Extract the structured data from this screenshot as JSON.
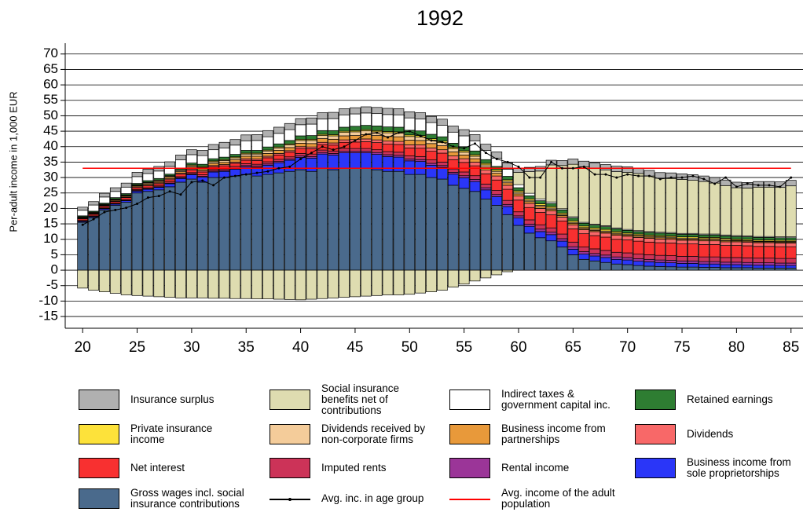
{
  "chart_data": {
    "type": "bar",
    "stacked": true,
    "title": "1992",
    "y_label": "Per-adult income in 1,000 EUR",
    "x": [
      20,
      21,
      22,
      23,
      24,
      25,
      26,
      27,
      28,
      29,
      30,
      31,
      32,
      33,
      34,
      35,
      36,
      37,
      38,
      39,
      40,
      41,
      42,
      43,
      44,
      45,
      46,
      47,
      48,
      49,
      50,
      51,
      52,
      53,
      54,
      55,
      56,
      57,
      58,
      59,
      60,
      61,
      62,
      63,
      64,
      65,
      66,
      67,
      68,
      69,
      70,
      71,
      72,
      73,
      74,
      75,
      76,
      77,
      78,
      79,
      80,
      81,
      82,
      83,
      84,
      85
    ],
    "xlim": [
      18.4,
      86.1
    ],
    "ylim": [
      -18.8,
      73.5
    ],
    "xticks": [
      20,
      25,
      30,
      35,
      40,
      45,
      50,
      55,
      60,
      65,
      70,
      75,
      80,
      85
    ],
    "yticks": [
      -15,
      -10,
      -5,
      0,
      5,
      10,
      15,
      20,
      25,
      30,
      35,
      40,
      45,
      50,
      55,
      60,
      65,
      70
    ],
    "grid": true,
    "series": [
      {
        "name": "Insurance surplus",
        "color": "#b0b0b0",
        "values": [
          1,
          1.1,
          1.2,
          1.2,
          1.3,
          1.4,
          1.4,
          1.5,
          1.5,
          1.6,
          1.6,
          1.7,
          1.7,
          1.8,
          1.8,
          1.9,
          1.9,
          2,
          2,
          2,
          2,
          2,
          2,
          2,
          2,
          2,
          2,
          2,
          2,
          2,
          2,
          2,
          2,
          2,
          2,
          2,
          2,
          2,
          2,
          2,
          1.3,
          1.4,
          1.5,
          1.5,
          1.6,
          1.7,
          1.8,
          1.8,
          1.8,
          1.8,
          1.8,
          1.8,
          1.8,
          1.8,
          1.8,
          1.8,
          1.8,
          1.8,
          1.8,
          1.8,
          1.8,
          1.8,
          1.8,
          1.8,
          1.8,
          1.8
        ]
      },
      {
        "name": "Social insurance benefits net of contributions",
        "color": "#dedcb0",
        "values": [
          -5.8,
          -6.5,
          -7,
          -7.5,
          -8,
          -8.2,
          -8.4,
          -8.6,
          -8.8,
          -9,
          -9,
          -9,
          -9.1,
          -9.1,
          -9.2,
          -9.2,
          -9.3,
          -9.3,
          -9.4,
          -9.5,
          -9.6,
          -9.4,
          -9.2,
          -9,
          -8.8,
          -8.6,
          -8.4,
          -8.2,
          -8,
          -8,
          -7.8,
          -7.4,
          -7,
          -6.5,
          -5.5,
          -4.5,
          -3.5,
          -2.5,
          -1.5,
          -0.5,
          4,
          7,
          9,
          12,
          14,
          17,
          18,
          18,
          18,
          18.2,
          18.5,
          18.5,
          18,
          17.5,
          17.5,
          17.5,
          17.2,
          17,
          16.5,
          16,
          15.5,
          15.5,
          16,
          16,
          16,
          16.5
        ]
      },
      {
        "name": "Indirect taxes & government capital inc.",
        "color": "#ffffff",
        "values": [
          1.8,
          2,
          2,
          2,
          2.1,
          2.2,
          2.3,
          2.4,
          2.5,
          2.6,
          2.7,
          2.8,
          2.9,
          3,
          3,
          3.1,
          3.2,
          3.3,
          3.4,
          3.5,
          3.6,
          3.7,
          3.8,
          3.9,
          4,
          4,
          4,
          4,
          4,
          4,
          4,
          3.9,
          3.8,
          3.7,
          3.6,
          3.5,
          3.3,
          3,
          2.7,
          2.3,
          1,
          0.8,
          0.6,
          0.5,
          0.4,
          0.4,
          0.3,
          0.3,
          0.3,
          0.3,
          0.3,
          0.3,
          0.3,
          0.3,
          0.3,
          0.3,
          0.3,
          0.3,
          0.3,
          0.3,
          0.3,
          0.3,
          0.3,
          0.3,
          0.3,
          0.3
        ]
      },
      {
        "name": "Retained earnings",
        "color": "#2e7d32",
        "values": [
          0.3,
          0.3,
          0.3,
          0.4,
          0.4,
          0.4,
          0.5,
          0.5,
          0.5,
          0.6,
          0.6,
          0.7,
          0.7,
          0.8,
          0.8,
          0.9,
          0.9,
          1,
          1,
          1.1,
          1.1,
          1.2,
          1.2,
          1.3,
          1.3,
          1.4,
          1.4,
          1.5,
          1.5,
          1.5,
          1.5,
          1.5,
          1.4,
          1.4,
          1.3,
          1.3,
          1.2,
          1.2,
          1.1,
          1.1,
          1,
          1,
          1,
          1,
          1,
          0.9,
          0.9,
          0.9,
          0.9,
          0.9,
          0.8,
          0.8,
          0.8,
          0.8,
          0.8,
          0.8,
          0.8,
          0.8,
          0.8,
          0.8,
          0.8,
          0.8,
          0.8,
          0.8,
          0.8,
          0.8
        ]
      },
      {
        "name": "Private insurance income",
        "color": "#fde23a",
        "values": [
          0.2,
          0.2,
          0.2,
          0.2,
          0.2,
          0.2,
          0.2,
          0.2,
          0.2,
          0.2,
          0.3,
          0.3,
          0.3,
          0.3,
          0.3,
          0.3,
          0.3,
          0.3,
          0.3,
          0.3,
          0.4,
          0.4,
          0.4,
          0.4,
          0.4,
          0.4,
          0.4,
          0.4,
          0.4,
          0.4,
          0.5,
          0.5,
          0.5,
          0.5,
          0.5,
          0.5,
          0.5,
          0.5,
          0.5,
          0.5,
          0.5,
          0.5,
          0.5,
          0.5,
          0.5,
          0.5,
          0.5,
          0.5,
          0.5,
          0.5,
          0.4,
          0.4,
          0.4,
          0.4,
          0.4,
          0.4,
          0.4,
          0.4,
          0.4,
          0.4,
          0.4,
          0.4,
          0.4,
          0.4,
          0.4,
          0.4
        ]
      },
      {
        "name": "Dividends received by non-corporate firms",
        "color": "#f4cc9a",
        "values": [
          0.1,
          0.1,
          0.1,
          0.2,
          0.2,
          0.2,
          0.3,
          0.3,
          0.3,
          0.4,
          0.4,
          0.5,
          0.5,
          0.6,
          0.6,
          0.7,
          0.7,
          0.8,
          0.8,
          0.9,
          0.9,
          1,
          1,
          1.1,
          1.1,
          1.2,
          1.2,
          1.2,
          1.2,
          1.2,
          1.2,
          1.1,
          1.1,
          1,
          1,
          0.9,
          0.8,
          0.7,
          0.6,
          0.5,
          0.5,
          0.4,
          0.4,
          0.4,
          0.3,
          0.3,
          0.3,
          0.3,
          0.3,
          0.3,
          0.3,
          0.3,
          0.3,
          0.3,
          0.3,
          0.3,
          0.3,
          0.3,
          0.3,
          0.3,
          0.2,
          0.2,
          0.2,
          0.2,
          0.2,
          0.2
        ]
      },
      {
        "name": "Business income from partnerships",
        "color": "#e8993a",
        "values": [
          0.2,
          0.2,
          0.2,
          0.3,
          0.3,
          0.3,
          0.4,
          0.4,
          0.5,
          0.5,
          0.6,
          0.6,
          0.7,
          0.7,
          0.8,
          0.8,
          0.9,
          0.9,
          1,
          1,
          1.1,
          1.1,
          1.2,
          1.2,
          1.3,
          1.3,
          1.4,
          1.4,
          1.5,
          1.5,
          1.5,
          1.4,
          1.4,
          1.3,
          1.3,
          1.2,
          1.1,
          1,
          0.9,
          0.8,
          0.7,
          0.6,
          0.6,
          0.5,
          0.5,
          0.5,
          0.4,
          0.4,
          0.4,
          0.4,
          0.4,
          0.4,
          0.4,
          0.4,
          0.4,
          0.4,
          0.4,
          0.4,
          0.4,
          0.4,
          0.3,
          0.3,
          0.3,
          0.3,
          0.3,
          0.3
        ]
      },
      {
        "name": "Dividends",
        "color": "#f86868",
        "values": [
          0.2,
          0.2,
          0.2,
          0.2,
          0.2,
          0.3,
          0.3,
          0.3,
          0.3,
          0.3,
          0.4,
          0.4,
          0.4,
          0.4,
          0.4,
          0.5,
          0.5,
          0.5,
          0.5,
          0.5,
          0.6,
          0.6,
          0.7,
          0.7,
          0.8,
          0.8,
          0.9,
          0.9,
          1,
          1,
          1,
          1.1,
          1.1,
          1.1,
          1.2,
          1.2,
          1.2,
          1.2,
          1.3,
          1.3,
          1.3,
          1.3,
          1.3,
          1.3,
          1.3,
          1.3,
          1.3,
          1.3,
          1.3,
          1.3,
          1.2,
          1.2,
          1.2,
          1.2,
          1.2,
          1.2,
          1.2,
          1.2,
          1.2,
          1.2,
          1.2,
          1.2,
          1.2,
          1.2,
          1.2,
          1.2
        ]
      },
      {
        "name": "Net interest",
        "color": "#f83030",
        "values": [
          0.5,
          0.5,
          0.5,
          0.5,
          0.6,
          0.6,
          0.6,
          0.7,
          0.7,
          0.8,
          0.8,
          0.9,
          0.9,
          1,
          1,
          1.1,
          1.2,
          1.3,
          1.4,
          1.5,
          1.6,
          1.7,
          1.8,
          1.9,
          2,
          2.1,
          2.2,
          2.3,
          2.4,
          2.5,
          2.6,
          2.7,
          2.8,
          2.9,
          3,
          3.1,
          3.2,
          3.3,
          3.4,
          3.6,
          3.8,
          4,
          4,
          4.2,
          4.2,
          4.3,
          4.3,
          4.3,
          4.3,
          4.2,
          4.2,
          4.2,
          4.1,
          4.1,
          4.1,
          4,
          4,
          4,
          4,
          3.9,
          3.9,
          3.9,
          3.8,
          3.8,
          3.8,
          3.8
        ]
      },
      {
        "name": "Imputed rents",
        "color": "#cc3358",
        "values": [
          0.2,
          0.2,
          0.2,
          0.2,
          0.3,
          0.3,
          0.3,
          0.3,
          0.4,
          0.4,
          0.4,
          0.5,
          0.5,
          0.5,
          0.6,
          0.6,
          0.6,
          0.7,
          0.7,
          0.7,
          0.8,
          0.8,
          0.8,
          0.8,
          0.9,
          0.9,
          0.9,
          0.9,
          1,
          1,
          1,
          1,
          1.1,
          1.1,
          1.1,
          1.2,
          1.2,
          1.2,
          1.3,
          1.3,
          1.3,
          1.4,
          1.4,
          1.4,
          1.5,
          1.5,
          1.5,
          1.5,
          1.5,
          1.5,
          1.5,
          1.5,
          1.5,
          1.5,
          1.5,
          1.5,
          1.5,
          1.5,
          1.5,
          1.5,
          1.5,
          1.5,
          1.5,
          1.5,
          1.5,
          1.5
        ]
      },
      {
        "name": "Rental income",
        "color": "#9b3598",
        "values": [
          0.1,
          0.1,
          0.1,
          0.1,
          0.1,
          0.2,
          0.2,
          0.2,
          0.2,
          0.2,
          0.3,
          0.3,
          0.3,
          0.3,
          0.3,
          0.4,
          0.4,
          0.4,
          0.4,
          0.4,
          0.5,
          0.5,
          0.5,
          0.5,
          0.5,
          0.5,
          0.5,
          0.6,
          0.6,
          0.6,
          0.6,
          0.6,
          0.6,
          0.6,
          0.6,
          0.7,
          0.7,
          0.7,
          0.7,
          0.7,
          0.7,
          0.7,
          0.8,
          0.8,
          0.8,
          0.8,
          0.8,
          0.8,
          0.8,
          0.8,
          0.8,
          0.8,
          0.8,
          0.8,
          0.8,
          0.8,
          0.8,
          0.8,
          0.8,
          0.8,
          0.8,
          0.8,
          0.8,
          0.8,
          0.8,
          0.8
        ]
      },
      {
        "name": "Business income from sole proprietorships",
        "color": "#2a36f8",
        "values": [
          0.3,
          0.3,
          0.4,
          0.4,
          0.5,
          0.6,
          0.7,
          0.8,
          1,
          1.2,
          1.4,
          1.6,
          1.8,
          2,
          2.2,
          2.5,
          2.8,
          3,
          3.3,
          3.6,
          4,
          4.3,
          4.6,
          4.8,
          5,
          5,
          5,
          5,
          4.8,
          4.6,
          4.4,
          4.2,
          4,
          3.8,
          3.6,
          3.4,
          3.2,
          3,
          2.8,
          2.6,
          2.4,
          2.2,
          2,
          2,
          1.9,
          1.8,
          1.7,
          1.6,
          1.6,
          1.5,
          1.5,
          1.4,
          1.4,
          1.3,
          1.3,
          1.2,
          1.2,
          1.1,
          1.1,
          1,
          1,
          0.9,
          0.9,
          0.9,
          0.8,
          0.8
        ]
      },
      {
        "name": "Gross wages incl. social insurance contributions",
        "color": "#4a6a8c",
        "values": [
          15.5,
          17,
          19.5,
          21,
          22,
          25,
          25.5,
          26,
          27,
          28.5,
          29.5,
          28.5,
          30,
          30,
          30.5,
          31,
          30.5,
          31,
          31.5,
          32,
          32.5,
          32,
          33,
          32.5,
          33,
          33,
          33,
          32.5,
          32,
          32,
          31,
          31,
          30,
          29.5,
          27.5,
          26.5,
          25.5,
          23,
          21,
          18,
          14.5,
          12,
          10.5,
          9.5,
          7.5,
          5,
          3.5,
          3,
          2.5,
          2,
          1.8,
          1.5,
          1.3,
          1.2,
          1.1,
          1,
          1,
          0.9,
          0.9,
          0.8,
          0.8,
          0.8,
          0.7,
          0.7,
          0.7,
          0.7
        ]
      }
    ],
    "lines": [
      {
        "name": "Avg. inc. in age group",
        "color": "#000000",
        "values": [
          14.7,
          16.5,
          18.8,
          19.5,
          20.2,
          21.5,
          23.5,
          24,
          25.5,
          24.5,
          28.5,
          29,
          27.5,
          30,
          30.5,
          31,
          31.5,
          32,
          33,
          33.5,
          36,
          38,
          40,
          39,
          40,
          42,
          44,
          44.5,
          43,
          44.5,
          45,
          43.5,
          42,
          41.5,
          40,
          39.5,
          41,
          38,
          36,
          35,
          33.5,
          30,
          30,
          35,
          33,
          33,
          33.5,
          31,
          31,
          30,
          31,
          30.5,
          30.5,
          29.5,
          30,
          30,
          30.5,
          29.5,
          28,
          30,
          27,
          28,
          27.5,
          27.5,
          27,
          30
        ]
      }
    ],
    "reference_line": {
      "name": "Avg. income of the adult population",
      "color": "#ff0000",
      "value": 33
    }
  }
}
